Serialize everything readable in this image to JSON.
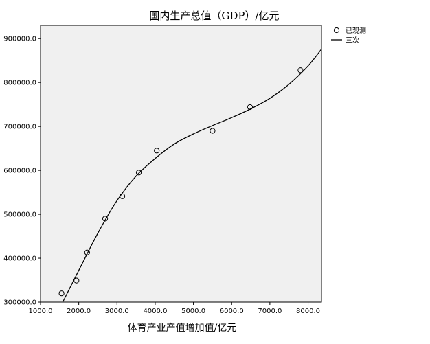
{
  "chart_data": {
    "type": "scatter",
    "title": "国内生产总值（GDP）/亿元",
    "xlabel": "体育产业产值增加值/亿元",
    "ylabel": "",
    "xlim": [
      1000,
      8350
    ],
    "ylim": [
      300000,
      930000
    ],
    "x_ticks": [
      1000,
      2000,
      3000,
      4000,
      5000,
      6000,
      7000,
      8000
    ],
    "x_tick_labels": [
      "1000.0",
      "2000.0",
      "3000.0",
      "4000.0",
      "5000.0",
      "6000.0",
      "7000.0",
      "8000.0"
    ],
    "y_ticks": [
      300000,
      400000,
      500000,
      600000,
      700000,
      800000,
      900000
    ],
    "y_tick_labels": [
      "300000.0",
      "400000.0",
      "500000.0",
      "600000.0",
      "700000.0",
      "800000.0",
      "900000.0"
    ],
    "grid": false,
    "legend_position": "top-right",
    "series": [
      {
        "name": "已观测",
        "kind": "markers",
        "points": [
          [
            1550,
            320000
          ],
          [
            1940,
            349000
          ],
          [
            2220,
            413000
          ],
          [
            2690,
            490000
          ],
          [
            3140,
            541000
          ],
          [
            3570,
            595000
          ],
          [
            4040,
            645000
          ],
          [
            5500,
            690000
          ],
          [
            6480,
            744000
          ],
          [
            7800,
            828000
          ]
        ]
      },
      {
        "name": "三次",
        "kind": "line",
        "points": [
          [
            1580,
            300000
          ],
          [
            2000,
            372000
          ],
          [
            2500,
            457000
          ],
          [
            3000,
            531000
          ],
          [
            3500,
            587000
          ],
          [
            4000,
            627000
          ],
          [
            4500,
            660000
          ],
          [
            5000,
            683000
          ],
          [
            5500,
            702000
          ],
          [
            6000,
            720000
          ],
          [
            6500,
            740000
          ],
          [
            7000,
            764000
          ],
          [
            7500,
            796000
          ],
          [
            8000,
            838000
          ],
          [
            8350,
            876000
          ]
        ]
      }
    ],
    "colors": {
      "plot_background": "#f0f0f0",
      "ink": "#000000"
    }
  }
}
